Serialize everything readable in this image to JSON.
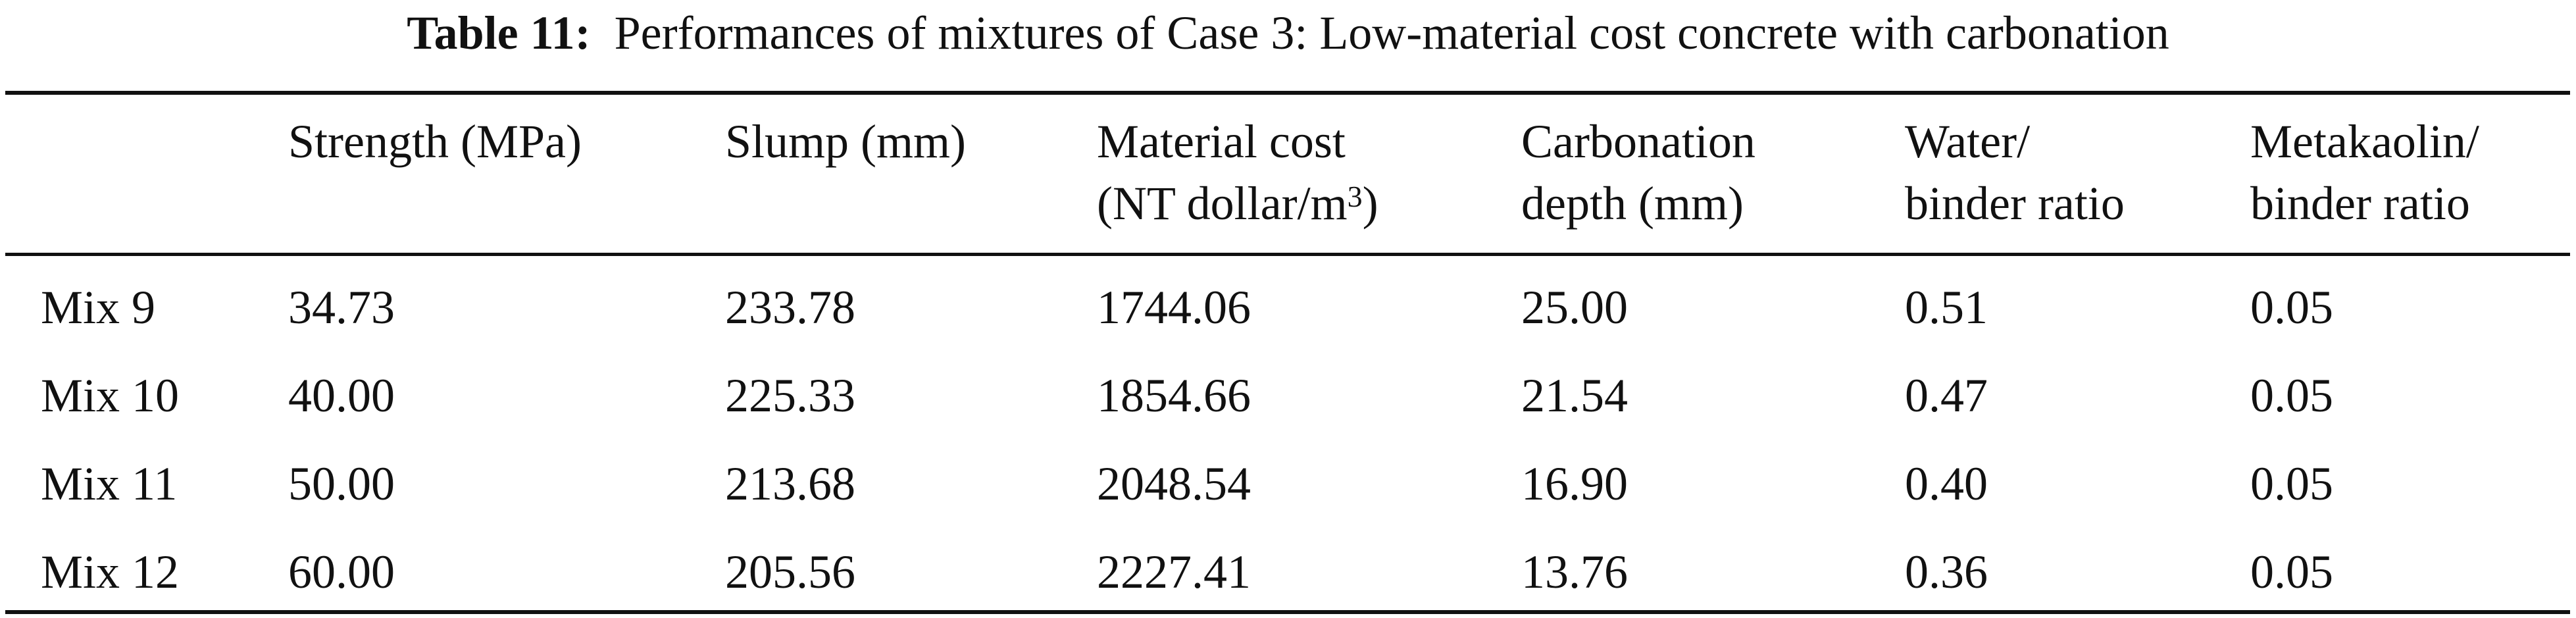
{
  "caption": {
    "label": "Table 11:",
    "text": "Performances of mixtures of Case 3: Low-material cost concrete with carbonation"
  },
  "table": {
    "headers": [
      {
        "line1": "",
        "line2": ""
      },
      {
        "line1": "Strength (MPa)",
        "line2": ""
      },
      {
        "line1": "Slump (mm)",
        "line2": ""
      },
      {
        "line1": "Material cost",
        "line2": "(NT dollar/m",
        "sup": "3",
        "after": ")"
      },
      {
        "line1": "Carbonation",
        "line2": "depth (mm)"
      },
      {
        "line1": "Water/",
        "line2": "binder ratio"
      },
      {
        "line1": "Metakaolin/",
        "line2": "binder ratio"
      }
    ],
    "rows": [
      [
        "Mix 9",
        "34.73",
        "233.78",
        "1744.06",
        "25.00",
        "0.51",
        "0.05"
      ],
      [
        "Mix 10",
        "40.00",
        "225.33",
        "1854.66",
        "21.54",
        "0.47",
        "0.05"
      ],
      [
        "Mix 11",
        "50.00",
        "213.68",
        "2048.54",
        "16.90",
        "0.40",
        "0.05"
      ],
      [
        "Mix 12",
        "60.00",
        "205.56",
        "2227.41",
        "13.76",
        "0.36",
        "0.05"
      ]
    ]
  }
}
